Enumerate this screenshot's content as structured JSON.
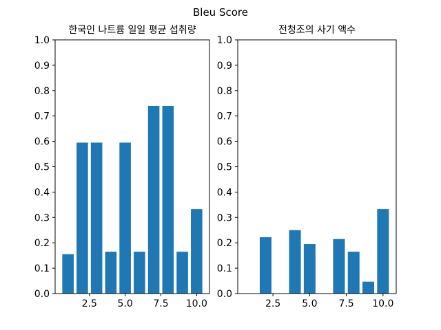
{
  "figure": {
    "suptitle": "Bleu Score"
  },
  "colors": {
    "bar": "#1f77b4",
    "axis": "#000000",
    "background": "#ffffff"
  },
  "chart_data": [
    {
      "type": "bar",
      "title": "한국인 나트륨 일일 평균 섭취량",
      "xlabel": "",
      "ylabel": "",
      "x": [
        1,
        2,
        3,
        4,
        5,
        6,
        7,
        8,
        9,
        10
      ],
      "values": [
        0.155,
        0.595,
        0.595,
        0.165,
        0.595,
        0.165,
        0.74,
        0.74,
        0.165,
        0.333
      ],
      "xlim": [
        0.1,
        10.9
      ],
      "ylim": [
        0,
        1.0
      ],
      "xticks": [
        2.5,
        5.0,
        7.5,
        10.0
      ],
      "xtick_labels": [
        "2.5",
        "5.0",
        "7.5",
        "10.0"
      ],
      "yticks": [
        0,
        0.1,
        0.2,
        0.3,
        0.4,
        0.5,
        0.6,
        0.7,
        0.8,
        0.9,
        1.0
      ],
      "ytick_labels": [
        "0.0",
        "0.1",
        "0.2",
        "0.3",
        "0.4",
        "0.5",
        "0.6",
        "0.7",
        "0.8",
        "0.9",
        "1.0"
      ],
      "grid": false
    },
    {
      "type": "bar",
      "title": "전청조의 사기 액수",
      "xlabel": "",
      "ylabel": "",
      "x": [
        1,
        2,
        3,
        4,
        5,
        6,
        7,
        8,
        9,
        10
      ],
      "values": [
        0,
        0.222,
        0,
        0.25,
        0.195,
        0,
        0.215,
        0.165,
        0.047,
        0.333
      ],
      "xlim": [
        0.1,
        10.9
      ],
      "ylim": [
        0,
        1.0
      ],
      "xticks": [
        2.5,
        5.0,
        7.5,
        10.0
      ],
      "xtick_labels": [
        "2.5",
        "5.0",
        "7.5",
        "10.0"
      ],
      "yticks": [
        0,
        0.1,
        0.2,
        0.3,
        0.4,
        0.5,
        0.6,
        0.7,
        0.8,
        0.9,
        1.0
      ],
      "ytick_labels": [
        "0.0",
        "0.1",
        "0.2",
        "0.3",
        "0.4",
        "0.5",
        "0.6",
        "0.7",
        "0.8",
        "0.9",
        "1.0"
      ],
      "grid": false
    }
  ]
}
